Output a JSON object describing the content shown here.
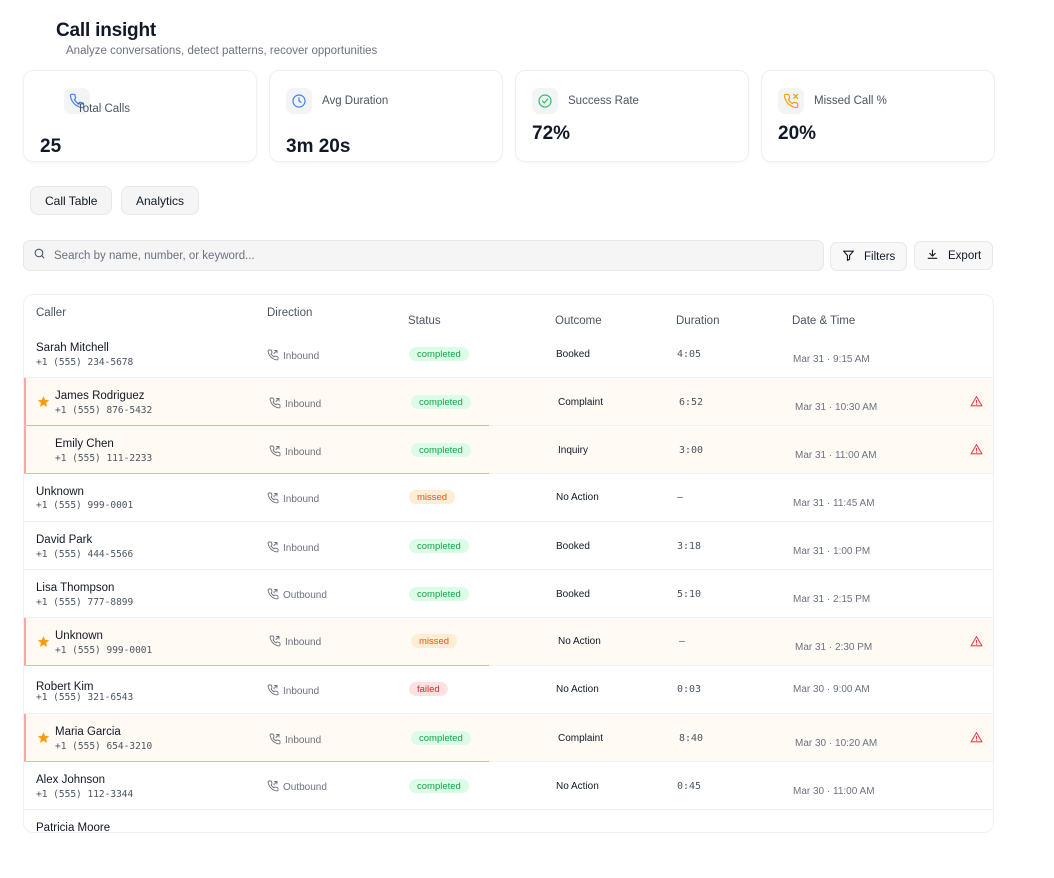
{
  "header": {
    "title": "Call insight",
    "subtitle": "Analyze conversations, detect patterns, recover opportunities"
  },
  "stats": [
    {
      "label": "Total Calls",
      "value": "25",
      "icon": "phone-icon",
      "color": "#3b82f6"
    },
    {
      "label": "Avg Duration",
      "value": "3m 20s",
      "icon": "clock-icon",
      "color": "#3b82f6"
    },
    {
      "label": "Success Rate",
      "value": "72%",
      "icon": "check-circle-icon",
      "color": "#22c55e"
    },
    {
      "label": "Missed Call %",
      "value": "20%",
      "icon": "phone-missed-icon",
      "color": "#f59e0b"
    }
  ],
  "tabs": [
    {
      "label": "Call Table"
    },
    {
      "label": "Analytics"
    }
  ],
  "search": {
    "placeholder": "Search by name, number, or keyword..."
  },
  "toolbar": {
    "filters_label": "Filters",
    "export_label": "Export"
  },
  "table": {
    "columns": [
      "Caller",
      "Direction",
      "Status",
      "Outcome",
      "Duration",
      "Date & Time"
    ],
    "rows": [
      {
        "name": "Sarah Mitchell",
        "phone": "+1 (555) 234-5678",
        "direction": "Inbound",
        "status": "completed",
        "outcome": "Booked",
        "duration": "4:05",
        "datetime": "Mar 31 · 9:15 AM",
        "starred": false,
        "flagged": false
      },
      {
        "name": "James Rodriguez",
        "phone": "+1 (555) 876-5432",
        "direction": "Inbound",
        "status": "completed",
        "outcome": "Complaint",
        "duration": "6:52",
        "datetime": "Mar 31 · 10:30 AM",
        "starred": true,
        "flagged": true
      },
      {
        "name": "Emily Chen",
        "phone": "+1 (555) 111-2233",
        "direction": "Inbound",
        "status": "completed",
        "outcome": "Inquiry",
        "duration": "3:00",
        "datetime": "Mar 31 · 11:00 AM",
        "starred": false,
        "flagged": true
      },
      {
        "name": "Unknown",
        "phone": "+1 (555) 999-0001",
        "direction": "Inbound",
        "status": "missed",
        "outcome": "No Action",
        "duration": "—",
        "datetime": "Mar 31 · 11:45 AM",
        "starred": false,
        "flagged": false
      },
      {
        "name": "David Park",
        "phone": "+1 (555) 444-5566",
        "direction": "Inbound",
        "status": "completed",
        "outcome": "Booked",
        "duration": "3:18",
        "datetime": "Mar 31 · 1:00 PM",
        "starred": false,
        "flagged": false
      },
      {
        "name": "Lisa Thompson",
        "phone": "+1 (555) 777-8899",
        "direction": "Outbound",
        "status": "completed",
        "outcome": "Booked",
        "duration": "5:10",
        "datetime": "Mar 31 · 2:15 PM",
        "starred": false,
        "flagged": false
      },
      {
        "name": "Unknown",
        "phone": "+1 (555) 999-0001",
        "direction": "Inbound",
        "status": "missed",
        "outcome": "No Action",
        "duration": "—",
        "datetime": "Mar 31 · 2:30 PM",
        "starred": true,
        "flagged": true
      },
      {
        "name": "Robert Kim",
        "phone": "+1 (555) 321-6543",
        "direction": "Inbound",
        "status": "failed",
        "outcome": "No Action",
        "duration": "0:03",
        "datetime": "Mar 30 · 9:00 AM",
        "starred": false,
        "flagged": false
      },
      {
        "name": "Maria Garcia",
        "phone": "+1 (555) 654-3210",
        "direction": "Inbound",
        "status": "completed",
        "outcome": "Complaint",
        "duration": "8:40",
        "datetime": "Mar 30 · 10:20 AM",
        "starred": true,
        "flagged": true
      },
      {
        "name": "Alex Johnson",
        "phone": "+1 (555) 112-3344",
        "direction": "Outbound",
        "status": "completed",
        "outcome": "No Action",
        "duration": "0:45",
        "datetime": "Mar 30 · 11:00 AM",
        "starred": false,
        "flagged": false
      },
      {
        "name": "Patricia Moore",
        "phone": "",
        "direction": "",
        "status": "",
        "outcome": "",
        "duration": "",
        "datetime": "",
        "starred": false,
        "flagged": false
      }
    ]
  }
}
